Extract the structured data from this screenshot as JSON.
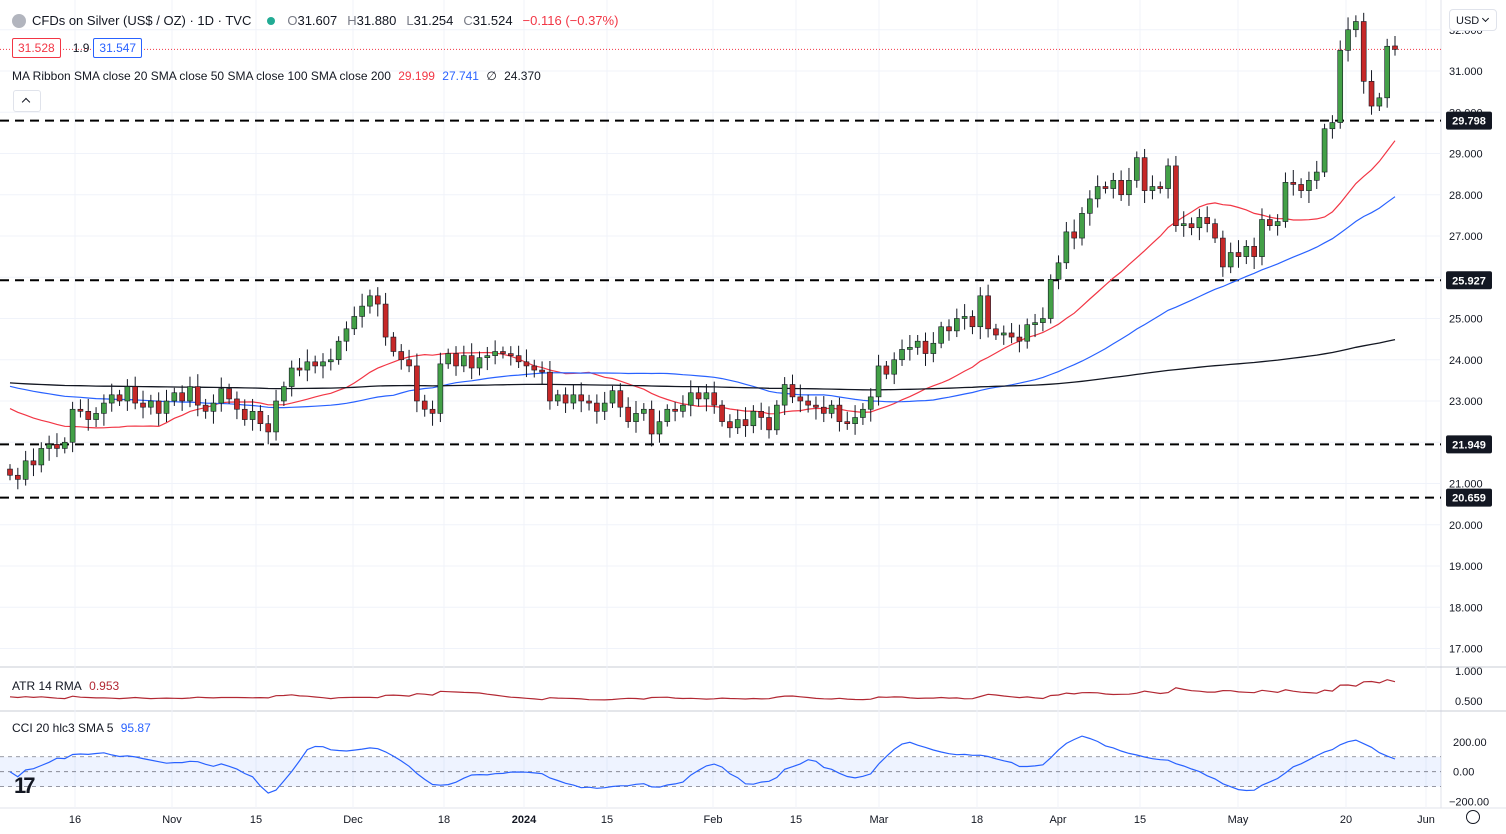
{
  "header": {
    "title": "CFDs on Silver (US$ / OZ) · 1D · TVC",
    "ohlc": {
      "o_label": "O",
      "o": "31.607",
      "h_label": "H",
      "h": "31.880",
      "l_label": "L",
      "l": "31.254",
      "c_label": "C",
      "c": "31.524"
    },
    "change": "−0.116 (−0.37%)",
    "sell_price": "31.528",
    "spread": "1.9",
    "buy_price": "31.547"
  },
  "ma_legend": {
    "label": "MA Ribbon SMA close 20 SMA close 50 SMA close 100 SMA close 200",
    "v20": "29.199",
    "v50": "27.741",
    "v100": "∅",
    "v200": "24.370"
  },
  "atr_legend": {
    "label": "ATR 14 RMA",
    "value": "0.953"
  },
  "cci_legend": {
    "label": "CCI 20 hlc3 SMA 5",
    "value": "95.87"
  },
  "currency": "USD",
  "logo": "17",
  "colors": {
    "up": "#22ab94",
    "down": "#f23645",
    "candle_up": "#43a047",
    "candle_down": "#c62828",
    "ma20": "#f23645",
    "ma50": "#2962ff",
    "ma200": "#131722",
    "atr": "#b22833",
    "cci": "#2962ff"
  },
  "chart_data": [
    {
      "type": "candlestick",
      "x_tick_labels": [
        "16",
        "Nov",
        "15",
        "Dec",
        "18",
        "2024",
        "15",
        "Feb",
        "15",
        "Mar",
        "18",
        "Apr",
        "15",
        "May",
        "20",
        "Jun"
      ],
      "y_tick_labels": [
        "17.000",
        "18.000",
        "19.000",
        "20.000",
        "21.000",
        "22.000",
        "23.000",
        "24.000",
        "25.000",
        "26.000",
        "27.000",
        "28.000",
        "29.000",
        "30.000",
        "31.000",
        "32.000"
      ],
      "ylim": [
        16.6,
        32.6
      ],
      "horizontal_levels": [
        29.798,
        25.927,
        21.949,
        20.659
      ],
      "current_price": 31.524,
      "candles": [
        [
          21.35,
          21.2
        ],
        [
          21.2,
          21.1
        ],
        [
          21.1,
          21.55
        ],
        [
          21.55,
          21.45
        ],
        [
          21.45,
          21.85
        ],
        [
          21.85,
          21.95
        ],
        [
          21.95,
          21.85
        ],
        [
          21.85,
          22.0
        ],
        [
          22.0,
          22.8
        ],
        [
          22.8,
          22.75
        ],
        [
          22.75,
          22.55
        ],
        [
          22.55,
          22.7
        ],
        [
          22.7,
          22.95
        ],
        [
          22.95,
          23.15
        ],
        [
          23.15,
          23.0
        ],
        [
          23.0,
          23.35
        ],
        [
          23.35,
          22.95
        ],
        [
          22.95,
          22.85
        ],
        [
          22.85,
          23.0
        ],
        [
          23.0,
          22.7
        ],
        [
          22.7,
          23.0
        ],
        [
          23.0,
          23.2
        ],
        [
          23.2,
          23.0
        ],
        [
          23.0,
          23.35
        ],
        [
          23.35,
          22.9
        ],
        [
          22.9,
          22.75
        ],
        [
          22.75,
          22.95
        ],
        [
          22.95,
          23.3
        ],
        [
          23.3,
          23.05
        ],
        [
          23.05,
          22.8
        ],
        [
          22.8,
          22.55
        ],
        [
          22.55,
          22.75
        ],
        [
          22.75,
          22.45
        ],
        [
          22.45,
          22.25
        ],
        [
          22.25,
          23.0
        ],
        [
          23.0,
          23.35
        ],
        [
          23.35,
          23.8
        ],
        [
          23.8,
          23.75
        ],
        [
          23.75,
          23.95
        ],
        [
          23.95,
          23.85
        ],
        [
          23.85,
          23.95
        ],
        [
          23.95,
          24.0
        ],
        [
          24.0,
          24.45
        ],
        [
          24.45,
          24.75
        ],
        [
          24.75,
          25.05
        ],
        [
          25.05,
          25.3
        ],
        [
          25.3,
          25.55
        ],
        [
          25.55,
          25.35
        ],
        [
          25.35,
          24.55
        ],
        [
          24.55,
          24.2
        ],
        [
          24.2,
          24.0
        ],
        [
          24.0,
          23.85
        ],
        [
          23.85,
          23.0
        ],
        [
          23.0,
          22.8
        ],
        [
          22.8,
          22.7
        ],
        [
          22.7,
          23.9
        ],
        [
          23.9,
          24.15
        ],
        [
          24.15,
          23.85
        ],
        [
          23.85,
          24.1
        ],
        [
          24.1,
          23.8
        ],
        [
          23.8,
          24.05
        ],
        [
          24.05,
          24.1
        ],
        [
          24.1,
          24.2
        ],
        [
          24.2,
          24.15
        ],
        [
          24.15,
          24.1
        ],
        [
          24.1,
          23.95
        ],
        [
          23.95,
          23.85
        ],
        [
          23.85,
          23.75
        ],
        [
          23.75,
          23.7
        ],
        [
          23.7,
          23.0
        ],
        [
          23.0,
          23.15
        ],
        [
          23.15,
          22.95
        ],
        [
          22.95,
          23.15
        ],
        [
          23.15,
          23.0
        ],
        [
          23.0,
          22.95
        ],
        [
          22.95,
          22.75
        ],
        [
          22.75,
          22.95
        ],
        [
          22.95,
          23.25
        ],
        [
          23.25,
          22.85
        ],
        [
          22.85,
          22.5
        ],
        [
          22.5,
          22.7
        ],
        [
          22.7,
          22.8
        ],
        [
          22.8,
          22.2
        ],
        [
          22.2,
          22.5
        ],
        [
          22.5,
          22.8
        ],
        [
          22.8,
          22.75
        ],
        [
          22.75,
          22.9
        ],
        [
          22.9,
          23.2
        ],
        [
          23.2,
          23.05
        ],
        [
          23.05,
          23.2
        ],
        [
          23.2,
          22.9
        ],
        [
          22.9,
          22.5
        ],
        [
          22.5,
          22.35
        ],
        [
          22.35,
          22.55
        ],
        [
          22.55,
          22.4
        ],
        [
          22.4,
          22.75
        ],
        [
          22.75,
          22.6
        ],
        [
          22.6,
          22.3
        ],
        [
          22.3,
          22.9
        ],
        [
          22.9,
          23.4
        ],
        [
          23.4,
          23.1
        ],
        [
          23.1,
          23.0
        ],
        [
          23.0,
          22.9
        ],
        [
          22.9,
          22.85
        ],
        [
          22.85,
          22.7
        ],
        [
          22.7,
          22.9
        ],
        [
          22.9,
          22.5
        ],
        [
          22.5,
          22.45
        ],
        [
          22.45,
          22.6
        ],
        [
          22.6,
          22.8
        ],
        [
          22.8,
          23.1
        ],
        [
          23.1,
          23.85
        ],
        [
          23.85,
          23.65
        ],
        [
          23.65,
          24.0
        ],
        [
          24.0,
          24.25
        ],
        [
          24.25,
          24.3
        ],
        [
          24.3,
          24.45
        ],
        [
          24.45,
          24.15
        ],
        [
          24.15,
          24.4
        ],
        [
          24.4,
          24.8
        ],
        [
          24.8,
          24.7
        ],
        [
          24.7,
          25.0
        ],
        [
          25.0,
          25.05
        ],
        [
          25.05,
          24.8
        ],
        [
          24.8,
          25.55
        ],
        [
          25.55,
          24.75
        ],
        [
          24.75,
          24.6
        ],
        [
          24.6,
          24.65
        ],
        [
          24.65,
          24.55
        ],
        [
          24.55,
          24.45
        ],
        [
          24.45,
          24.85
        ],
        [
          24.85,
          24.9
        ],
        [
          24.9,
          25.0
        ],
        [
          25.0,
          25.95
        ],
        [
          25.95,
          26.35
        ],
        [
          26.35,
          27.1
        ],
        [
          27.1,
          26.95
        ],
        [
          26.95,
          27.55
        ],
        [
          27.55,
          27.9
        ],
        [
          27.9,
          28.2
        ],
        [
          28.2,
          28.15
        ],
        [
          28.15,
          28.35
        ],
        [
          28.35,
          28.0
        ],
        [
          28.0,
          28.35
        ],
        [
          28.35,
          28.9
        ],
        [
          28.9,
          28.1
        ],
        [
          28.1,
          28.2
        ],
        [
          28.2,
          28.15
        ],
        [
          28.15,
          28.7
        ],
        [
          28.7,
          27.25
        ],
        [
          27.25,
          27.3
        ],
        [
          27.3,
          27.2
        ],
        [
          27.2,
          27.45
        ],
        [
          27.45,
          27.3
        ],
        [
          27.3,
          26.95
        ],
        [
          26.95,
          26.25
        ],
        [
          26.25,
          26.6
        ],
        [
          26.6,
          26.5
        ],
        [
          26.5,
          26.75
        ],
        [
          26.75,
          26.5
        ],
        [
          26.5,
          27.4
        ],
        [
          27.4,
          27.25
        ],
        [
          27.25,
          27.35
        ],
        [
          27.35,
          28.3
        ],
        [
          28.3,
          28.25
        ],
        [
          28.25,
          28.1
        ],
        [
          28.1,
          28.35
        ],
        [
          28.35,
          28.55
        ],
        [
          28.55,
          29.6
        ],
        [
          29.6,
          29.75
        ],
        [
          29.75,
          31.5
        ],
        [
          31.5,
          32.0
        ],
        [
          32.0,
          32.2
        ],
        [
          32.2,
          30.75
        ],
        [
          30.75,
          30.15
        ],
        [
          30.15,
          30.35
        ],
        [
          30.35,
          31.6
        ],
        [
          31.607,
          31.524
        ]
      ]
    },
    {
      "type": "line",
      "name": "ATR 14 RMA",
      "y_tick_labels": [
        "0.500",
        "1.000"
      ],
      "ylim": [
        0.35,
        1.05
      ],
      "last_value": 0.953
    },
    {
      "type": "line",
      "name": "CCI 20 hlc3 SMA 5",
      "y_tick_labels": [
        "-200.00",
        "0.00",
        "200.00"
      ],
      "ylim": [
        -230,
        400
      ],
      "band": [
        -100,
        100
      ],
      "last_value": 95.87
    }
  ]
}
